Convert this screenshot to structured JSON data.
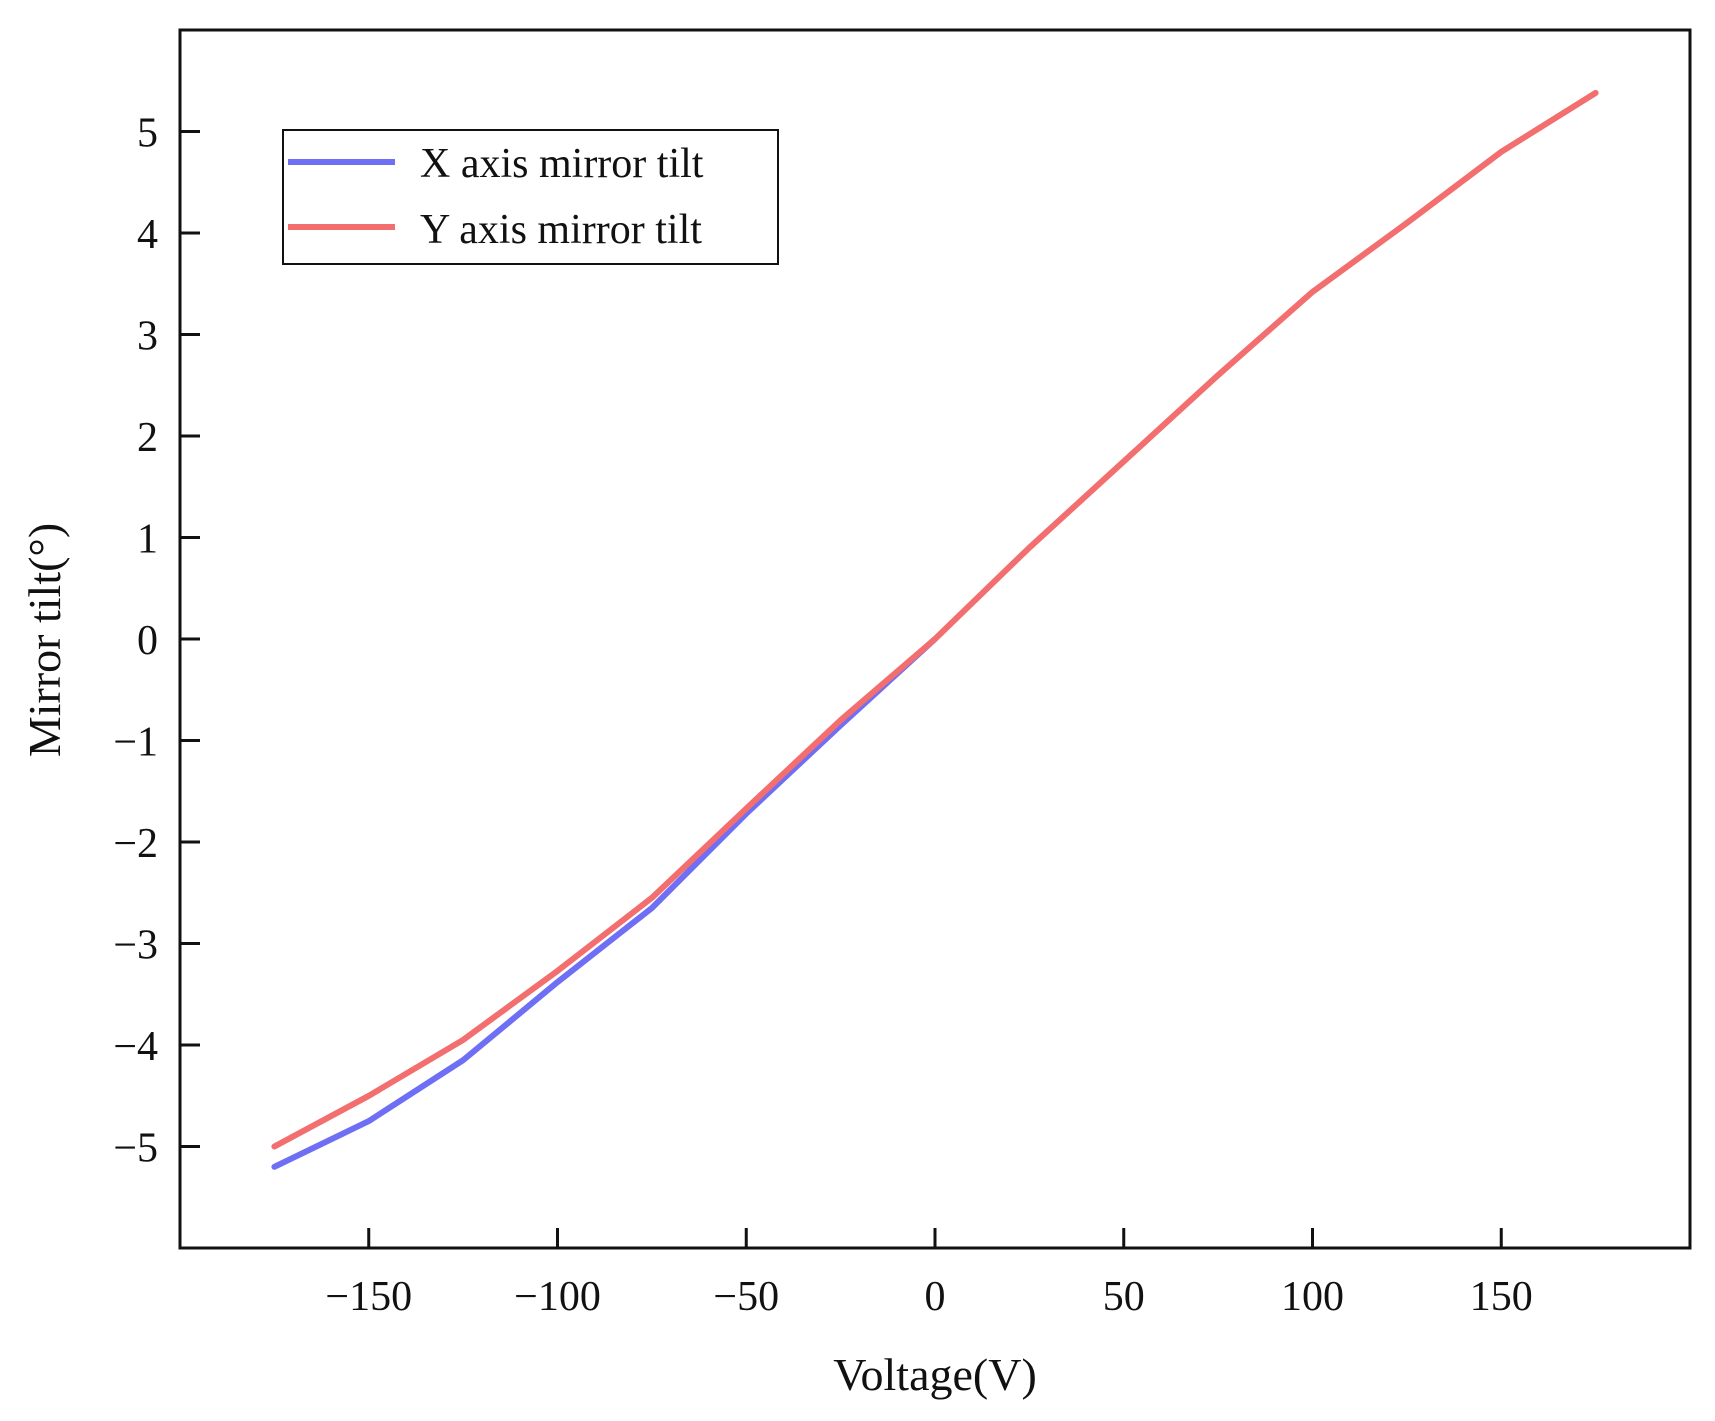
{
  "chart_data": {
    "type": "line",
    "title": "",
    "xlabel": "Voltage(V)",
    "ylabel": "Mirror tilt(°)",
    "xlim": [
      -200,
      200
    ],
    "ylim": [
      -6,
      6
    ],
    "xticks": [
      -150,
      -100,
      -50,
      0,
      50,
      100,
      150
    ],
    "xtick_labels": [
      "−150",
      "−100",
      "−50",
      "0",
      "50",
      "100",
      "150"
    ],
    "yticks": [
      -5,
      -4,
      -3,
      -2,
      -1,
      0,
      1,
      2,
      3,
      4,
      5
    ],
    "ytick_labels": [
      "−5",
      "−4",
      "−3",
      "−2",
      "−1",
      "0",
      "1",
      "2",
      "3",
      "4",
      "5"
    ],
    "grid": false,
    "legend_position": "top-left",
    "series": [
      {
        "name": "X axis mirror tilt",
        "color": "#6f6ff5",
        "x": [
          -175,
          -150,
          -125,
          -100,
          -75,
          -50,
          -25,
          0
        ],
        "y": [
          -5.2,
          -4.75,
          -4.15,
          -3.38,
          -2.65,
          -1.72,
          -0.85,
          0.0
        ]
      },
      {
        "name": "Y axis mirror tilt",
        "color": "#f36e6e",
        "x": [
          -175,
          -150,
          -125,
          -100,
          -75,
          -50,
          -25,
          0,
          25,
          50,
          75,
          100,
          125,
          150,
          175
        ],
        "y": [
          -5.0,
          -4.5,
          -3.95,
          -3.27,
          -2.55,
          -1.67,
          -0.8,
          0.0,
          0.9,
          1.75,
          2.6,
          3.42,
          4.1,
          4.8,
          5.38
        ]
      }
    ]
  }
}
